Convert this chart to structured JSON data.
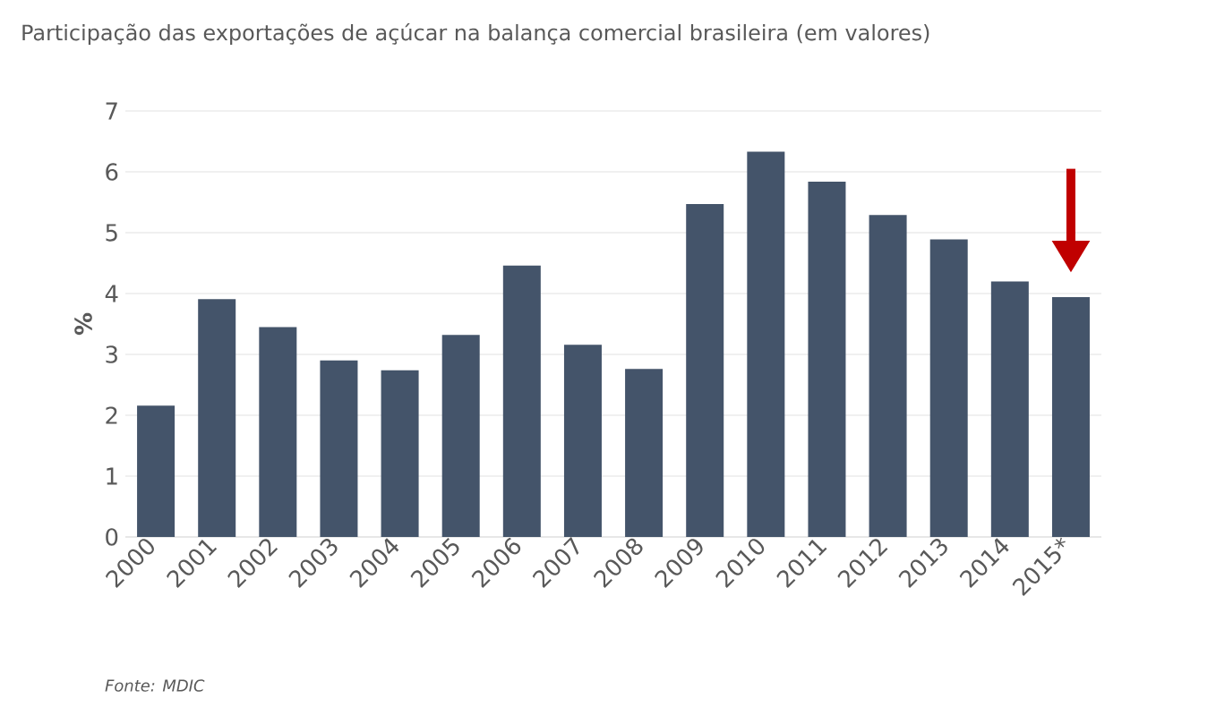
{
  "chart_data": {
    "type": "bar",
    "title": "Participação das exportações de açúcar na balança comercial brasileira (em valores)",
    "ylabel": "%",
    "categories": [
      "2000",
      "2001",
      "2002",
      "2003",
      "2004",
      "2005",
      "2006",
      "2007",
      "2008",
      "2009",
      "2010",
      "2011",
      "2012",
      "2013",
      "2014",
      "2015*"
    ],
    "values": [
      2.16,
      3.91,
      3.45,
      2.9,
      2.74,
      3.32,
      4.46,
      3.16,
      2.76,
      5.47,
      6.33,
      5.84,
      5.29,
      4.89,
      4.2,
      3.94
    ],
    "color": "#44546a",
    "ylim": [
      0,
      7
    ],
    "yticks": [
      0,
      1,
      2,
      3,
      4,
      5,
      6,
      7
    ],
    "grid": "y",
    "annotations": [
      "Fonte: MDIC"
    ]
  }
}
